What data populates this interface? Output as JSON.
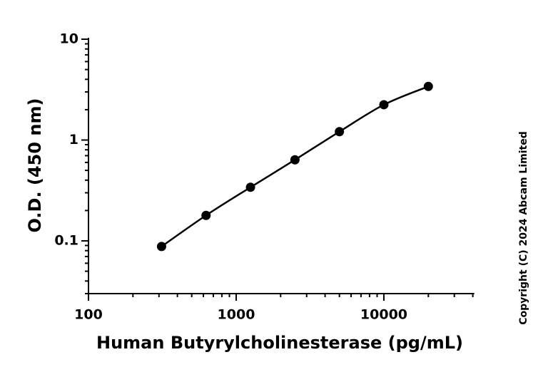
{
  "chart_data": {
    "type": "line",
    "x_label": "Human Butyrylcholinesterase (pg/mL)",
    "y_label": "O.D. (450 nm)",
    "copyright": "Copyright (C) 2024 Abcam Limited",
    "x": [
      312.5,
      625,
      1250,
      2500,
      5000,
      10000,
      20000
    ],
    "series": [
      {
        "color": "#000000",
        "values": [
          0.088,
          0.179,
          0.34,
          0.637,
          1.21,
          2.24,
          3.4
        ]
      }
    ],
    "xlim": [
      100,
      40000
    ],
    "ylim": [
      0.03,
      10
    ],
    "xticks": [
      100,
      1000,
      10000
    ],
    "yticks": [
      0.1,
      1,
      10
    ],
    "xminorticks": [
      200,
      300,
      400,
      500,
      600,
      700,
      800,
      900,
      2000,
      3000,
      4000,
      5000,
      6000,
      7000,
      8000,
      9000,
      20000,
      30000,
      40000
    ],
    "yminorticks": [
      0.03,
      0.04,
      0.05,
      0.06,
      0.07,
      0.08,
      0.09,
      0.2,
      0.3,
      0.4,
      0.5,
      0.6,
      0.7,
      0.8,
      0.9,
      2,
      3,
      4,
      5,
      6,
      7,
      8,
      9
    ],
    "xscale": "log",
    "yscale": "log",
    "markers": true
  }
}
